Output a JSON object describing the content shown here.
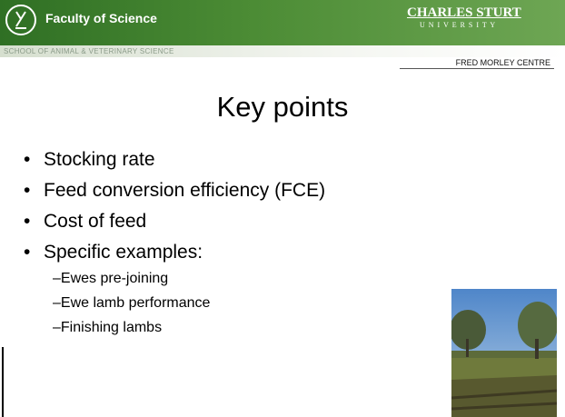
{
  "header": {
    "faculty": "Faculty of Science",
    "university_name": "CHARLES STURT",
    "university_sub": "U N I V E R S I T Y",
    "school": "SCHOOL OF ANIMAL & VETERINARY SCIENCE",
    "centre": "FRED MORLEY CENTRE"
  },
  "slide": {
    "title": "Key points",
    "bullets": [
      "Stocking rate",
      "Feed conversion efficiency (FCE)",
      "Cost of feed",
      "Specific examples:"
    ],
    "sub_bullets": [
      "Ewes pre-joining",
      "Ewe lamb performance",
      "Finishing lambs"
    ]
  }
}
